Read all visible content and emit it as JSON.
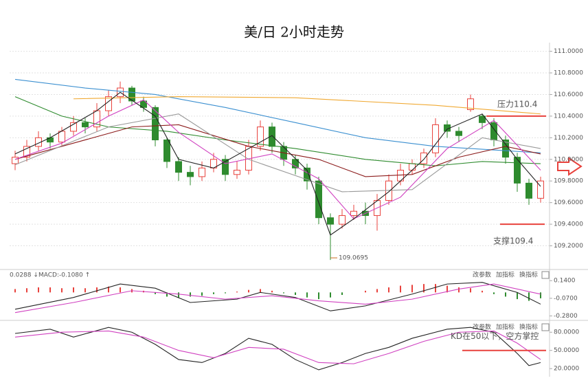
{
  "chart_data": [
    {
      "type": "candlestick",
      "title": "美/日 2小时走势",
      "open": [
        109.96,
        110.02,
        110.12,
        110.2,
        110.16,
        110.26,
        110.34,
        110.3,
        110.45,
        110.58,
        110.66,
        110.54,
        110.48,
        110.18,
        109.98,
        109.88,
        109.84,
        109.92,
        110.0,
        109.86,
        109.9,
        110.12,
        110.3,
        110.12,
        110.0,
        109.92,
        109.8,
        109.46,
        109.4,
        109.48,
        109.52,
        109.48,
        109.62,
        109.8,
        109.9,
        109.96,
        110.06,
        110.32,
        110.26,
        110.46,
        110.4,
        110.34,
        110.18,
        110.02,
        109.78,
        109.64
      ],
      "high": [
        110.08,
        110.18,
        110.26,
        110.24,
        110.3,
        110.4,
        110.38,
        110.52,
        110.64,
        110.72,
        110.68,
        110.58,
        110.5,
        110.2,
        110.02,
        109.94,
        109.98,
        110.06,
        110.04,
        109.98,
        110.18,
        110.36,
        110.34,
        110.16,
        110.04,
        109.96,
        109.84,
        109.5,
        109.54,
        109.58,
        109.6,
        109.68,
        109.86,
        109.96,
        110.0,
        110.1,
        110.38,
        110.36,
        110.3,
        110.6,
        110.42,
        110.38,
        110.22,
        110.06,
        109.82,
        109.84
      ],
      "low": [
        109.9,
        109.98,
        110.08,
        110.1,
        110.12,
        110.22,
        110.24,
        110.26,
        110.4,
        110.52,
        110.5,
        110.44,
        110.12,
        109.92,
        109.8,
        109.76,
        109.8,
        109.88,
        109.8,
        109.82,
        109.86,
        110.08,
        110.06,
        109.94,
        109.86,
        109.72,
        109.4,
        109.0695,
        109.36,
        109.44,
        109.4,
        109.34,
        109.58,
        109.76,
        109.86,
        109.92,
        110.02,
        110.2,
        110.16,
        110.44,
        110.28,
        110.12,
        109.96,
        109.7,
        109.58,
        109.6
      ],
      "close": [
        110.02,
        110.12,
        110.2,
        110.16,
        110.26,
        110.34,
        110.3,
        110.45,
        110.58,
        110.66,
        110.54,
        110.48,
        110.18,
        109.98,
        109.88,
        109.84,
        109.92,
        110.0,
        109.86,
        109.9,
        110.12,
        110.3,
        110.12,
        110.0,
        109.92,
        109.8,
        109.46,
        109.4,
        109.48,
        109.52,
        109.48,
        109.62,
        109.8,
        109.9,
        109.96,
        110.06,
        110.32,
        110.26,
        110.22,
        110.56,
        110.34,
        110.18,
        110.02,
        109.78,
        109.64,
        109.8
      ],
      "up_color": "#e8413c",
      "down_color": "#2e8b2e",
      "lines": [
        {
          "color": "#3a8fd0",
          "x": [
            0,
            6,
            12,
            18,
            24,
            30,
            36,
            42,
            45
          ],
          "values": [
            110.74,
            110.66,
            110.6,
            110.48,
            110.34,
            110.2,
            110.12,
            110.08,
            110.06
          ]
        },
        {
          "color": "#f0a830",
          "x": [
            5,
            14,
            24,
            36,
            45
          ],
          "values": [
            110.56,
            110.58,
            110.57,
            110.5,
            110.42
          ]
        },
        {
          "color": "#2e8b2e",
          "x": [
            0,
            4,
            8,
            13,
            18,
            24,
            30,
            36,
            40,
            45
          ],
          "values": [
            110.58,
            110.4,
            110.3,
            110.26,
            110.18,
            110.1,
            110.0,
            109.94,
            109.98,
            109.96
          ]
        },
        {
          "color": "#8b1a1a",
          "x": [
            0,
            5,
            10,
            14,
            20,
            26,
            30,
            34,
            38,
            42,
            45
          ],
          "values": [
            110.0,
            110.15,
            110.3,
            110.32,
            110.12,
            110.0,
            109.84,
            109.86,
            110.02,
            110.12,
            110.05
          ]
        },
        {
          "color": "#999999",
          "x": [
            0,
            8,
            14,
            20,
            28,
            34,
            40,
            45
          ],
          "values": [
            109.95,
            110.3,
            110.42,
            110.0,
            109.7,
            109.72,
            110.2,
            110.1
          ]
        },
        {
          "color": "#d040c0",
          "x": [
            0,
            4,
            8,
            11,
            14,
            18,
            22,
            26,
            29,
            33,
            37,
            41,
            45
          ],
          "values": [
            110.0,
            110.15,
            110.4,
            110.55,
            110.25,
            109.96,
            110.05,
            109.82,
            109.45,
            109.65,
            110.1,
            110.36,
            109.9
          ]
        },
        {
          "color": "#222222",
          "x": [
            0,
            3,
            7,
            9,
            12,
            14,
            17,
            20,
            22,
            25,
            27,
            29,
            32,
            35,
            37,
            40,
            43,
            45
          ],
          "values": [
            110.05,
            110.2,
            110.45,
            110.62,
            110.4,
            110.0,
            109.92,
            110.1,
            110.22,
            109.9,
            109.3,
            109.45,
            109.7,
            110.0,
            110.28,
            110.42,
            110.0,
            109.75
          ]
        }
      ],
      "ylim": [
        109.0,
        111.08
      ],
      "yticks": [
        {
          "value": 111.0,
          "label": "111.0000"
        },
        {
          "value": 110.8,
          "label": "110.8000"
        },
        {
          "value": 110.6,
          "label": "110.6000"
        },
        {
          "value": 110.4,
          "label": "110.4000"
        },
        {
          "value": 110.2,
          "label": "110.2000"
        },
        {
          "value": 110.0,
          "label": "110.0000"
        },
        {
          "value": 109.8,
          "label": "109.8000"
        },
        {
          "value": 109.6,
          "label": "109.6000"
        },
        {
          "value": 109.4,
          "label": "109.4000"
        },
        {
          "value": 109.2,
          "label": "109.2000"
        }
      ],
      "grid": true,
      "min_label": "109.0695",
      "annotations": [
        {
          "text": "压力110.4",
          "value": 110.4
        },
        {
          "text": "支撑109.4",
          "value": 109.4
        }
      ]
    },
    {
      "type": "macd",
      "header": [
        "0.0288 ↓",
        "MACD:-0.1080 ↑"
      ],
      "buttons": [
        "改参数",
        "加指标",
        "换指标"
      ],
      "histogram": {
        "up_color": "#e8413c",
        "down_color": "#2e8b2e",
        "values": [
          0.04,
          0.05,
          0.06,
          0.06,
          0.05,
          0.06,
          0.05,
          0.06,
          0.07,
          0.06,
          0.04,
          0.02,
          -0.02,
          -0.05,
          -0.06,
          -0.05,
          -0.04,
          -0.02,
          -0.01,
          0.01,
          0.03,
          0.04,
          0.02,
          -0.01,
          -0.03,
          -0.06,
          -0.08,
          -0.06,
          -0.03,
          0.0,
          0.02,
          0.04,
          0.06,
          0.08,
          0.09,
          0.1,
          0.1,
          0.08,
          0.06,
          0.05,
          0.02,
          -0.02,
          -0.05,
          -0.08,
          -0.1,
          -0.07
        ]
      },
      "lines": [
        {
          "color": "#222222",
          "x": [
            0,
            5,
            9,
            12,
            15,
            19,
            21,
            24,
            27,
            30,
            34,
            37,
            40,
            43,
            45
          ],
          "values": [
            -0.2,
            -0.06,
            0.1,
            0.05,
            -0.12,
            -0.08,
            0.0,
            -0.06,
            -0.22,
            -0.16,
            -0.02,
            0.1,
            0.12,
            0.0,
            -0.14
          ]
        },
        {
          "color": "#d040c0",
          "x": [
            0,
            5,
            10,
            14,
            18,
            22,
            26,
            30,
            34,
            38,
            41,
            45
          ],
          "values": [
            -0.24,
            -0.12,
            0.02,
            -0.02,
            -0.08,
            -0.04,
            -0.1,
            -0.14,
            -0.08,
            0.04,
            0.1,
            -0.02
          ]
        }
      ],
      "ylim": [
        -0.3,
        0.24
      ],
      "yticks": [
        {
          "value": 0.14,
          "label": "0.1400"
        },
        {
          "value": -0.07,
          "label": "-0.0700"
        },
        {
          "value": -0.28,
          "label": "-0.2800"
        }
      ]
    },
    {
      "type": "kd",
      "buttons": [
        "改参数",
        "加指标",
        "换指标"
      ],
      "lines": [
        {
          "color": "#222222",
          "x": [
            0,
            3,
            5,
            8,
            10,
            12,
            14,
            16,
            18,
            20,
            22,
            24,
            26,
            28,
            30,
            32,
            34,
            37,
            39,
            41,
            43,
            44,
            45
          ],
          "values": [
            78,
            85,
            72,
            88,
            80,
            60,
            35,
            30,
            45,
            70,
            60,
            35,
            18,
            30,
            45,
            55,
            70,
            85,
            88,
            80,
            45,
            25,
            30
          ]
        },
        {
          "color": "#d040c0",
          "x": [
            0,
            4,
            8,
            11,
            14,
            17,
            20,
            23,
            26,
            29,
            32,
            35,
            38,
            41,
            43,
            45
          ],
          "values": [
            72,
            80,
            82,
            72,
            50,
            38,
            55,
            52,
            30,
            28,
            45,
            65,
            80,
            82,
            62,
            35
          ]
        }
      ],
      "ylim": [
        10,
        95
      ],
      "yticks": [
        {
          "value": 80,
          "label": "80.0000"
        },
        {
          "value": 50,
          "label": "50.0000"
        },
        {
          "value": 20,
          "label": "20.0000"
        }
      ],
      "annotations": [
        {
          "text": "KD在50以下，空方掌控",
          "value": 50
        }
      ]
    }
  ]
}
